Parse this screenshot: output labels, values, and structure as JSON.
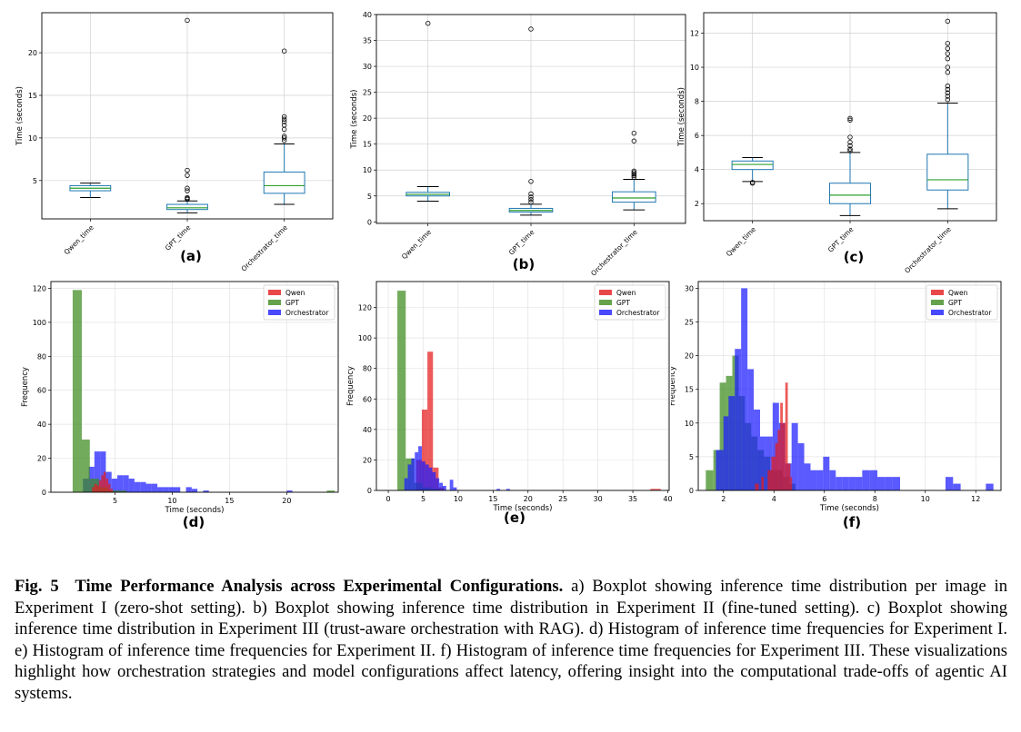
{
  "caption": {
    "label": "Fig. 5",
    "title": "Time Performance Analysis across Experimental Configurations.",
    "body": "a) Boxplot showing inference time distribution per image in Experiment I (zero-shot setting). b) Boxplot showing inference time distribution in Experiment II (fine-tuned setting). c) Boxplot showing inference time distribution in Experiment III (trust-aware orchestration with RAG). d) Histogram of inference time frequencies for Experiment I. e) Histogram of inference time frequencies for Experiment II. f) Histogram of inference time frequencies for Experiment III. These visualizations highlight how orchestration strategies and model configurations affect latency, offering insight into the computational trade-offs of agentic AI systems."
  },
  "colors": {
    "Qwen": "#e41a1c",
    "GPT": "#3d8b1f",
    "Orchestrator": "#1a1aff",
    "box": "#1f77b4",
    "median": "#2ca02c"
  },
  "chart_data": [
    {
      "id": "a",
      "panel_label": "(a)",
      "type": "box",
      "ylabel": "Time (seconds)",
      "ylim": [
        0.5,
        24.7
      ],
      "yticks": [
        5,
        10,
        15,
        20
      ],
      "categories": [
        "Qwen_time",
        "GPT_time",
        "Orchestrator_time"
      ],
      "boxes": [
        {
          "whislo": 3.0,
          "q1": 3.8,
          "med": 4.1,
          "q3": 4.4,
          "whishi": 4.7,
          "fliers": []
        },
        {
          "whislo": 1.2,
          "q1": 1.6,
          "med": 1.8,
          "q3": 2.2,
          "whishi": 2.6,
          "fliers": [
            2.8,
            2.9,
            3.0,
            3.8,
            4.1,
            5.6,
            6.2,
            23.8
          ]
        },
        {
          "whislo": 2.2,
          "q1": 3.5,
          "med": 4.4,
          "q3": 6.0,
          "whishi": 9.3,
          "fliers": [
            9.7,
            10.0,
            10.2,
            11.0,
            11.5,
            11.9,
            12.2,
            12.5,
            20.2
          ]
        }
      ]
    },
    {
      "id": "b",
      "panel_label": "(b)",
      "type": "box",
      "ylabel": "Time (seconds)",
      "ylim": [
        -0.3,
        40
      ],
      "yticks": [
        0,
        5,
        10,
        15,
        20,
        25,
        30,
        35,
        40
      ],
      "categories": [
        "Qwen_time",
        "GPT_time",
        "Orchestrator_time"
      ],
      "boxes": [
        {
          "whislo": 4.0,
          "q1": 5.0,
          "med": 5.3,
          "q3": 5.7,
          "whishi": 6.8,
          "fliers": [
            38.3
          ]
        },
        {
          "whislo": 1.3,
          "q1": 1.9,
          "med": 2.2,
          "q3": 2.6,
          "whishi": 3.4,
          "fliers": [
            3.8,
            4.3,
            4.8,
            5.4,
            7.8,
            37.2
          ]
        },
        {
          "whislo": 2.3,
          "q1": 3.8,
          "med": 4.6,
          "q3": 5.8,
          "whishi": 8.2,
          "fliers": [
            8.6,
            8.9,
            9.2,
            9.5,
            9.8,
            15.6,
            17.1
          ]
        }
      ]
    },
    {
      "id": "c",
      "panel_label": "(c)",
      "type": "box",
      "ylabel": "Time (seconds)",
      "ylim": [
        1.0,
        13.2
      ],
      "yticks": [
        2,
        4,
        6,
        8,
        10,
        12
      ],
      "categories": [
        "Qwen_time",
        "GPT_time",
        "Orchestrator_time"
      ],
      "boxes": [
        {
          "whislo": 3.3,
          "q1": 4.0,
          "med": 4.3,
          "q3": 4.5,
          "whishi": 4.7,
          "fliers": [
            3.2,
            3.25
          ]
        },
        {
          "whislo": 1.3,
          "q1": 2.0,
          "med": 2.5,
          "q3": 3.2,
          "whishi": 5.0,
          "fliers": [
            5.1,
            5.2,
            5.4,
            5.6,
            5.9,
            6.9,
            7.0
          ]
        },
        {
          "whislo": 1.7,
          "q1": 2.8,
          "med": 3.4,
          "q3": 4.9,
          "whishi": 7.9,
          "fliers": [
            8.1,
            8.3,
            8.5,
            8.7,
            8.9,
            9.7,
            10.0,
            10.5,
            10.8,
            11.1,
            11.4,
            12.7
          ]
        }
      ]
    },
    {
      "id": "d",
      "panel_label": "(d)",
      "type": "histogram",
      "xlabel": "Time (seconds)",
      "ylabel": "Frequency",
      "xlim": [
        -0.6,
        24.5
      ],
      "ylim": [
        0,
        124
      ],
      "xticks": [
        5,
        10,
        15,
        20
      ],
      "yticks": [
        0,
        20,
        40,
        60,
        80,
        100,
        120
      ],
      "legend": [
        "Qwen",
        "GPT",
        "Orchestrator"
      ],
      "legend_position": "top-right",
      "series": [
        {
          "name": "Orchestrator",
          "bins": [
            [
              2.2,
              2.7,
              8
            ],
            [
              2.7,
              3.2,
              15
            ],
            [
              3.2,
              3.7,
              24
            ],
            [
              3.7,
              4.2,
              24
            ],
            [
              4.2,
              4.7,
              12
            ],
            [
              4.7,
              5.2,
              8
            ],
            [
              5.2,
              5.7,
              10
            ],
            [
              5.7,
              6.2,
              10
            ],
            [
              6.2,
              6.7,
              8
            ],
            [
              6.7,
              7.2,
              6
            ],
            [
              7.2,
              7.7,
              6
            ],
            [
              7.7,
              8.2,
              5
            ],
            [
              8.2,
              8.7,
              5
            ],
            [
              8.7,
              9.2,
              3
            ],
            [
              9.2,
              9.7,
              3
            ],
            [
              9.7,
              10.2,
              3
            ],
            [
              10.2,
              10.7,
              3
            ],
            [
              11.2,
              11.7,
              3
            ],
            [
              11.7,
              12.2,
              2
            ],
            [
              12.7,
              13.2,
              1
            ],
            [
              20.0,
              20.5,
              1
            ]
          ]
        },
        {
          "name": "GPT",
          "bins": [
            [
              1.3,
              2.1,
              119
            ],
            [
              2.1,
              2.8,
              31
            ],
            [
              2.8,
              3.6,
              8
            ],
            [
              3.6,
              4.4,
              3
            ],
            [
              4.4,
              5.2,
              1
            ],
            [
              5.2,
              6.0,
              1
            ],
            [
              23.5,
              24.2,
              1
            ]
          ]
        },
        {
          "name": "Qwen",
          "bins": [
            [
              3.0,
              3.2,
              3
            ],
            [
              3.2,
              3.4,
              5
            ],
            [
              3.4,
              3.6,
              4
            ],
            [
              3.6,
              3.8,
              7
            ],
            [
              3.8,
              4.0,
              10
            ],
            [
              4.0,
              4.2,
              12
            ],
            [
              4.2,
              4.4,
              8
            ],
            [
              4.4,
              4.6,
              5
            ],
            [
              4.6,
              4.8,
              2
            ]
          ]
        }
      ]
    },
    {
      "id": "e",
      "panel_label": "(e)",
      "type": "histogram",
      "xlabel": "Time (seconds)",
      "ylabel": "Frequency",
      "xlim": [
        -1.7,
        40.2
      ],
      "ylim": [
        0,
        137
      ],
      "xticks": [
        0,
        5,
        10,
        15,
        20,
        25,
        30,
        35,
        40
      ],
      "yticks": [
        0,
        20,
        40,
        60,
        80,
        100,
        120
      ],
      "legend": [
        "Qwen",
        "GPT",
        "Orchestrator"
      ],
      "legend_position": "top-right",
      "series": [
        {
          "name": "Qwen",
          "bins": [
            [
              4.0,
              4.8,
              20
            ],
            [
              4.8,
              5.6,
              53
            ],
            [
              5.6,
              6.4,
              91
            ],
            [
              6.4,
              7.2,
              15
            ],
            [
              7.2,
              8.0,
              2
            ],
            [
              37.5,
              39.0,
              1
            ]
          ]
        },
        {
          "name": "GPT",
          "bins": [
            [
              1.3,
              2.5,
              131
            ],
            [
              2.5,
              3.7,
              21
            ],
            [
              3.7,
              4.9,
              5
            ],
            [
              4.9,
              6.1,
              2
            ],
            [
              6.1,
              7.3,
              1
            ]
          ]
        },
        {
          "name": "Orchestrator",
          "bins": [
            [
              2.3,
              2.8,
              8
            ],
            [
              2.8,
              3.3,
              17
            ],
            [
              3.3,
              3.8,
              21
            ],
            [
              3.8,
              4.3,
              25
            ],
            [
              4.3,
              4.8,
              29
            ],
            [
              4.8,
              5.3,
              19
            ],
            [
              5.3,
              5.8,
              17
            ],
            [
              5.8,
              6.3,
              15
            ],
            [
              6.3,
              6.8,
              12
            ],
            [
              6.8,
              7.3,
              8
            ],
            [
              7.3,
              7.8,
              5
            ],
            [
              7.8,
              8.3,
              3
            ],
            [
              8.8,
              9.3,
              7
            ],
            [
              9.3,
              9.8,
              2
            ],
            [
              15.5,
              16.0,
              1
            ],
            [
              16.9,
              17.4,
              1
            ]
          ]
        }
      ]
    },
    {
      "id": "f",
      "panel_label": "(f)",
      "type": "histogram",
      "xlabel": "Time (seconds)",
      "ylabel": "Frequency",
      "xlim": [
        1.0,
        13.0
      ],
      "ylim": [
        0,
        31
      ],
      "xticks": [
        2,
        4,
        6,
        8,
        10,
        12
      ],
      "yticks": [
        0,
        5,
        10,
        15,
        20,
        25,
        30
      ],
      "legend": [
        "Qwen",
        "GPT",
        "Orchestrator"
      ],
      "legend_position": "top-right",
      "series": [
        {
          "name": "GPT",
          "bins": [
            [
              1.3,
              1.6,
              3
            ],
            [
              1.6,
              1.85,
              6
            ],
            [
              1.85,
              2.1,
              16
            ],
            [
              2.1,
              2.35,
              17
            ],
            [
              2.35,
              2.6,
              20
            ],
            [
              2.6,
              2.85,
              14
            ],
            [
              2.85,
              3.1,
              10
            ],
            [
              3.1,
              3.35,
              8
            ],
            [
              3.35,
              3.6,
              6
            ],
            [
              3.6,
              3.85,
              5
            ],
            [
              3.85,
              4.1,
              3
            ],
            [
              4.1,
              4.35,
              3
            ],
            [
              4.35,
              4.6,
              2
            ],
            [
              4.6,
              4.85,
              1
            ]
          ]
        },
        {
          "name": "Orchestrator",
          "bins": [
            [
              1.7,
              2.0,
              6
            ],
            [
              2.0,
              2.2,
              11
            ],
            [
              2.2,
              2.45,
              14
            ],
            [
              2.45,
              2.7,
              21
            ],
            [
              2.7,
              2.95,
              30
            ],
            [
              2.95,
              3.2,
              18
            ],
            [
              3.2,
              3.45,
              12
            ],
            [
              3.45,
              3.7,
              8
            ],
            [
              3.7,
              3.95,
              8
            ],
            [
              3.95,
              4.2,
              13
            ],
            [
              4.2,
              4.45,
              10
            ],
            [
              4.45,
              4.7,
              4
            ],
            [
              4.7,
              4.95,
              10
            ],
            [
              4.95,
              5.2,
              7
            ],
            [
              5.2,
              5.45,
              4
            ],
            [
              5.45,
              5.7,
              3
            ],
            [
              5.7,
              5.95,
              3
            ],
            [
              5.95,
              6.2,
              5
            ],
            [
              6.2,
              6.45,
              3
            ],
            [
              6.45,
              6.7,
              2
            ],
            [
              6.7,
              6.95,
              2
            ],
            [
              6.95,
              7.2,
              2
            ],
            [
              7.2,
              7.5,
              2
            ],
            [
              7.5,
              7.8,
              3
            ],
            [
              7.8,
              8.1,
              3
            ],
            [
              8.1,
              8.4,
              2
            ],
            [
              8.4,
              8.7,
              2
            ],
            [
              8.7,
              9.0,
              2
            ],
            [
              10.8,
              11.1,
              2
            ],
            [
              11.1,
              11.4,
              1
            ],
            [
              12.4,
              12.7,
              1
            ]
          ]
        },
        {
          "name": "Qwen",
          "bins": [
            [
              3.25,
              3.4,
              1
            ],
            [
              3.5,
              3.6,
              2
            ],
            [
              3.75,
              3.9,
              3
            ],
            [
              3.9,
              4.05,
              5
            ],
            [
              4.05,
              4.15,
              7
            ],
            [
              4.15,
              4.25,
              9
            ],
            [
              4.25,
              4.35,
              13
            ],
            [
              4.35,
              4.45,
              10
            ],
            [
              4.45,
              4.55,
              16
            ],
            [
              4.55,
              4.65,
              4
            ],
            [
              4.65,
              4.72,
              2
            ]
          ]
        }
      ]
    }
  ]
}
